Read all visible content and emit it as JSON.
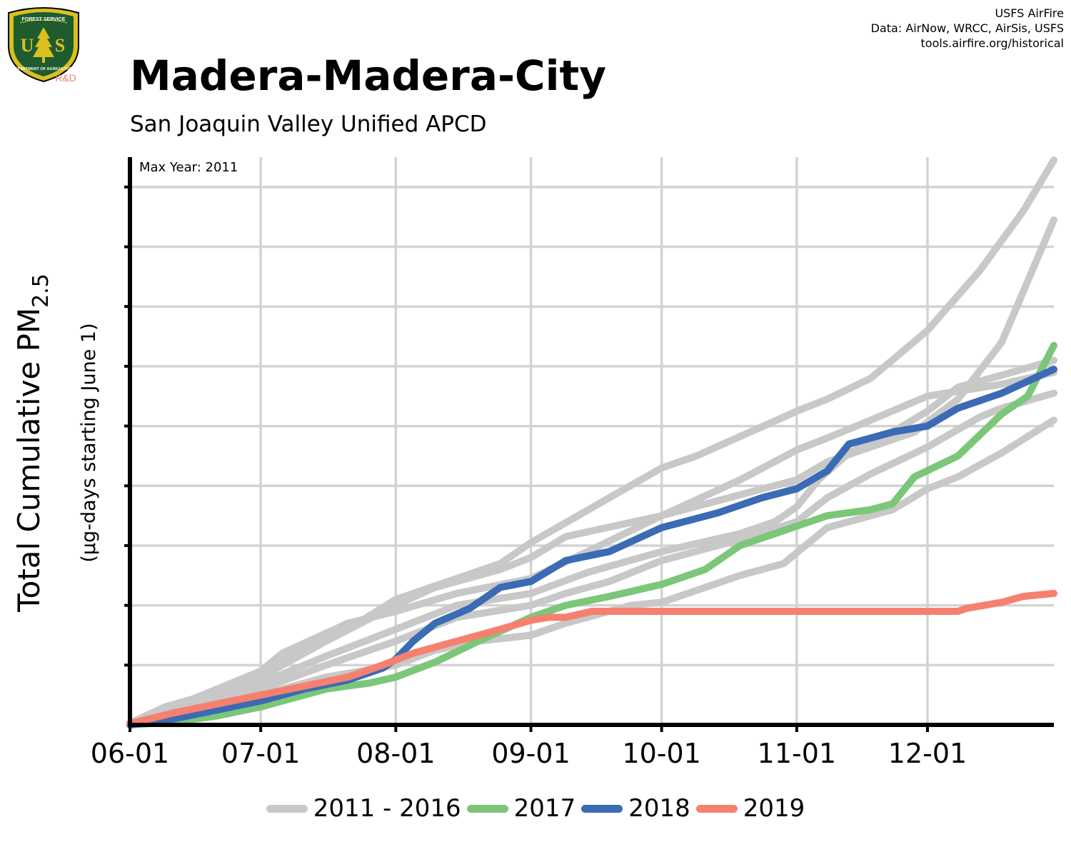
{
  "credits": {
    "line1": "USFS AirFire",
    "line2": "Data: AirNow, WRCC, AirSis, USFS",
    "line3": "tools.airfire.org/historical"
  },
  "logo": {
    "top_text": "FOREST SERVICE",
    "bottom_text": "DEPARTMENT OF AGRICULTURE",
    "letters_left": "U",
    "letters_right": "S",
    "tag": "R&D",
    "colors": {
      "shield_green": "#1e5b2e",
      "gold": "#d9c01d",
      "tag": "#f07f6b"
    }
  },
  "title": "Madera-Madera-City",
  "subtitle": "San Joaquin Valley Unified APCD",
  "colors": {
    "grid": "#d3d3d3",
    "historical": "#c8c8c8",
    "y2017": "#7cc67a",
    "y2018": "#3a6bb4",
    "y2019": "#f6806f",
    "axis": "#000000"
  },
  "chart_data": {
    "type": "line",
    "title": "Madera-Madera-City",
    "subtitle": "San Joaquin Valley Unified APCD",
    "annotation": "Max Year: 2011",
    "ylabel": "Total Cumulative PM2.5",
    "ylabel_main": "Total Cumulative PM",
    "ylabel_sub": "2.5",
    "ylabel_units": "(µg-days starting June 1)",
    "xlabel": "",
    "x_tick_labels": [
      "06-01",
      "07-01",
      "08-01",
      "09-01",
      "10-01",
      "11-01",
      "12-01"
    ],
    "x_tick_days": [
      0,
      30,
      61,
      92,
      122,
      153,
      183
    ],
    "xlim": [
      0,
      212
    ],
    "ylim": [
      0,
      95
    ],
    "y_grid_values": [
      10,
      20,
      30,
      40,
      50,
      60,
      70,
      80,
      90
    ],
    "y_tick_labels_shown": false,
    "grid": true,
    "legend_position": "bottom",
    "legend": [
      {
        "label": "2011 - 2016",
        "color": "#c8c8c8"
      },
      {
        "label": "2017",
        "color": "#7cc67a"
      },
      {
        "label": "2018",
        "color": "#3a6bb4"
      },
      {
        "label": "2019",
        "color": "#f6806f"
      }
    ],
    "series": [
      {
        "name": "2011",
        "group": "2011 - 2016",
        "color": "#c8c8c8",
        "points": [
          [
            0,
            0.3
          ],
          [
            8,
            3
          ],
          [
            20,
            5.5
          ],
          [
            30,
            9
          ],
          [
            34,
            11
          ],
          [
            50,
            16
          ],
          [
            61,
            21
          ],
          [
            75,
            24.5
          ],
          [
            85,
            27
          ],
          [
            92,
            30.5
          ],
          [
            110,
            38
          ],
          [
            122,
            43
          ],
          [
            130,
            45
          ],
          [
            150,
            51.5
          ],
          [
            153,
            52.5
          ],
          [
            160,
            54.5
          ],
          [
            170,
            58
          ],
          [
            183,
            66
          ],
          [
            195,
            76
          ],
          [
            205,
            86
          ],
          [
            212,
            94.5
          ]
        ]
      },
      {
        "name": "2012",
        "group": "2011 - 2016",
        "color": "#c8c8c8",
        "points": [
          [
            0,
            0.3
          ],
          [
            8,
            2.5
          ],
          [
            20,
            5
          ],
          [
            30,
            8
          ],
          [
            45,
            14
          ],
          [
            61,
            20
          ],
          [
            70,
            23
          ],
          [
            85,
            26
          ],
          [
            92,
            28
          ],
          [
            100,
            31.5
          ],
          [
            122,
            35
          ],
          [
            140,
            38.5
          ],
          [
            153,
            41
          ],
          [
            160,
            44
          ],
          [
            170,
            46.5
          ],
          [
            180,
            49
          ],
          [
            190,
            54.5
          ],
          [
            200,
            64
          ],
          [
            212,
            84.5
          ]
        ]
      },
      {
        "name": "2013",
        "group": "2011 - 2016",
        "color": "#c8c8c8",
        "points": [
          [
            0,
            0.3
          ],
          [
            10,
            2.5
          ],
          [
            20,
            4.5
          ],
          [
            30,
            7
          ],
          [
            45,
            11.5
          ],
          [
            61,
            16
          ],
          [
            75,
            20
          ],
          [
            92,
            22
          ],
          [
            105,
            25.5
          ],
          [
            122,
            29
          ],
          [
            140,
            32
          ],
          [
            148,
            34
          ],
          [
            153,
            36.5
          ],
          [
            158,
            41
          ],
          [
            165,
            45.5
          ],
          [
            175,
            49
          ],
          [
            183,
            52.5
          ],
          [
            190,
            56.5
          ],
          [
            200,
            58.5
          ],
          [
            212,
            61
          ]
        ]
      },
      {
        "name": "2014",
        "group": "2011 - 2016",
        "color": "#c8c8c8",
        "points": [
          [
            0,
            0.2
          ],
          [
            10,
            1.5
          ],
          [
            20,
            3
          ],
          [
            30,
            5
          ],
          [
            45,
            8
          ],
          [
            61,
            10
          ],
          [
            70,
            12.5
          ],
          [
            80,
            14
          ],
          [
            92,
            15
          ],
          [
            100,
            17
          ],
          [
            115,
            20
          ],
          [
            122,
            20.5
          ],
          [
            140,
            25
          ],
          [
            150,
            27
          ],
          [
            155,
            30
          ],
          [
            160,
            33
          ],
          [
            175,
            36
          ],
          [
            183,
            39.5
          ],
          [
            190,
            41.5
          ],
          [
            200,
            45.5
          ],
          [
            212,
            51
          ]
        ]
      },
      {
        "name": "2015",
        "group": "2011 - 2016",
        "color": "#c8c8c8",
        "points": [
          [
            0,
            0.2
          ],
          [
            10,
            2
          ],
          [
            20,
            4
          ],
          [
            30,
            6
          ],
          [
            45,
            10
          ],
          [
            61,
            14
          ],
          [
            75,
            18
          ],
          [
            92,
            20
          ],
          [
            100,
            22
          ],
          [
            110,
            24
          ],
          [
            122,
            27.5
          ],
          [
            140,
            31
          ],
          [
            153,
            34
          ],
          [
            160,
            38
          ],
          [
            170,
            42
          ],
          [
            183,
            46.5
          ],
          [
            195,
            51.5
          ],
          [
            200,
            53
          ],
          [
            212,
            55.5
          ]
        ]
      },
      {
        "name": "2016",
        "group": "2011 - 2016",
        "color": "#c8c8c8",
        "points": [
          [
            0,
            0.3
          ],
          [
            10,
            3
          ],
          [
            20,
            6
          ],
          [
            30,
            9
          ],
          [
            35,
            12
          ],
          [
            50,
            17
          ],
          [
            61,
            19
          ],
          [
            75,
            22
          ],
          [
            92,
            24.5
          ],
          [
            105,
            29
          ],
          [
            122,
            35
          ],
          [
            140,
            41
          ],
          [
            153,
            46
          ],
          [
            160,
            48
          ],
          [
            170,
            51
          ],
          [
            183,
            55
          ],
          [
            200,
            57
          ],
          [
            212,
            59
          ]
        ]
      },
      {
        "name": "2017",
        "group": "2017",
        "color": "#7cc67a",
        "points": [
          [
            0,
            0
          ],
          [
            10,
            0.5
          ],
          [
            20,
            1.5
          ],
          [
            30,
            3
          ],
          [
            45,
            6
          ],
          [
            55,
            7
          ],
          [
            61,
            8
          ],
          [
            70,
            10.5
          ],
          [
            80,
            14
          ],
          [
            92,
            18
          ],
          [
            100,
            20
          ],
          [
            110,
            21.5
          ],
          [
            122,
            23.5
          ],
          [
            132,
            26
          ],
          [
            140,
            30
          ],
          [
            150,
            32.5
          ],
          [
            160,
            35
          ],
          [
            170,
            36
          ],
          [
            175,
            37
          ],
          [
            180,
            41.5
          ],
          [
            190,
            45
          ],
          [
            200,
            52
          ],
          [
            206,
            55
          ],
          [
            212,
            63.5
          ]
        ]
      },
      {
        "name": "2018",
        "group": "2018",
        "color": "#3a6bb4",
        "points": [
          [
            0,
            0
          ],
          [
            10,
            1
          ],
          [
            20,
            2.5
          ],
          [
            30,
            4
          ],
          [
            40,
            6
          ],
          [
            50,
            7.5
          ],
          [
            58,
            9.5
          ],
          [
            61,
            11
          ],
          [
            65,
            14
          ],
          [
            70,
            17
          ],
          [
            78,
            19.5
          ],
          [
            85,
            23
          ],
          [
            92,
            24
          ],
          [
            100,
            27.5
          ],
          [
            110,
            29
          ],
          [
            122,
            33
          ],
          [
            135,
            35.5
          ],
          [
            145,
            38
          ],
          [
            153,
            39.5
          ],
          [
            160,
            42.5
          ],
          [
            165,
            47
          ],
          [
            175,
            49
          ],
          [
            183,
            50
          ],
          [
            190,
            53
          ],
          [
            200,
            55.5
          ],
          [
            212,
            59.5
          ]
        ]
      },
      {
        "name": "2019",
        "group": "2019",
        "color": "#f6806f",
        "points": [
          [
            0,
            0.2
          ],
          [
            10,
            2
          ],
          [
            20,
            3.5
          ],
          [
            30,
            5
          ],
          [
            40,
            6.5
          ],
          [
            50,
            8
          ],
          [
            58,
            10
          ],
          [
            65,
            12
          ],
          [
            75,
            14
          ],
          [
            85,
            16
          ],
          [
            92,
            17.5
          ],
          [
            96,
            18
          ],
          [
            100,
            18
          ],
          [
            106,
            19
          ],
          [
            122,
            19
          ],
          [
            150,
            19
          ],
          [
            160,
            19
          ],
          [
            170,
            19
          ],
          [
            180,
            19
          ],
          [
            190,
            19
          ],
          [
            192,
            19.5
          ],
          [
            200,
            20.5
          ],
          [
            205,
            21.5
          ],
          [
            212,
            22
          ]
        ]
      }
    ]
  }
}
